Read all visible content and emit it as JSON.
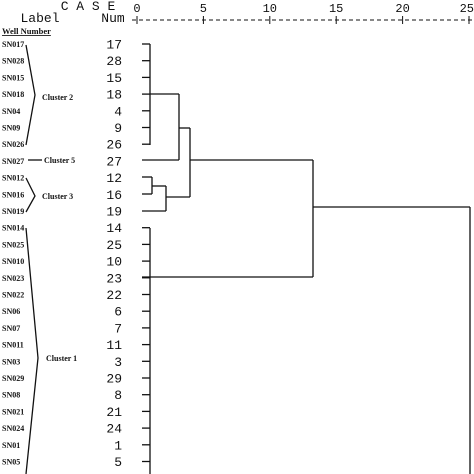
{
  "header": {
    "case_label": "C A S E",
    "label_col": "Label",
    "num_col": "Num",
    "well_number": "Well Number"
  },
  "scale": {
    "ticks": [
      "0",
      "5",
      "10",
      "15",
      "20",
      "25"
    ]
  },
  "rows": [
    {
      "label": "SN017",
      "num": "17"
    },
    {
      "label": "SN028",
      "num": "28"
    },
    {
      "label": "SN015",
      "num": "15"
    },
    {
      "label": "SN018",
      "num": "18"
    },
    {
      "label": "SN04",
      "num": "4"
    },
    {
      "label": "SN09",
      "num": "9"
    },
    {
      "label": "SN026",
      "num": "26"
    },
    {
      "label": "SN027",
      "num": "27"
    },
    {
      "label": "SN012",
      "num": "12"
    },
    {
      "label": "SN016",
      "num": "16"
    },
    {
      "label": "SN019",
      "num": "19"
    },
    {
      "label": "SN014",
      "num": "14"
    },
    {
      "label": "SN025",
      "num": "25"
    },
    {
      "label": "SN010",
      "num": "10"
    },
    {
      "label": "SN023",
      "num": "23"
    },
    {
      "label": "SN022",
      "num": "22"
    },
    {
      "label": "SN06",
      "num": "6"
    },
    {
      "label": "SN07",
      "num": "7"
    },
    {
      "label": "SN011",
      "num": "11"
    },
    {
      "label": "SN03",
      "num": "3"
    },
    {
      "label": "SN029",
      "num": "29"
    },
    {
      "label": "SN08",
      "num": "8"
    },
    {
      "label": "SN021",
      "num": "21"
    },
    {
      "label": "SN024",
      "num": "24"
    },
    {
      "label": "SN01",
      "num": "1"
    },
    {
      "label": "SN05",
      "num": "5"
    }
  ],
  "clusters": [
    {
      "name": "Cluster 2"
    },
    {
      "name": "Cluster 5"
    },
    {
      "name": "Cluster 3"
    },
    {
      "name": "Cluster 1"
    }
  ]
}
